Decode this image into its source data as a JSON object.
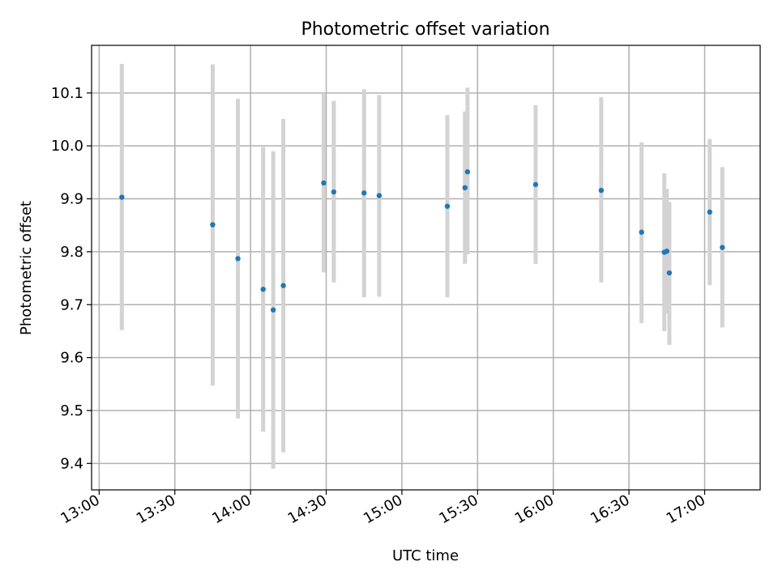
{
  "chart_data": {
    "type": "scatter",
    "title": "Photometric offset variation",
    "xlabel": "UTC time",
    "ylabel": "Photometric offset",
    "xlim": [
      "12:57",
      "17:22"
    ],
    "ylim": [
      9.35,
      10.19
    ],
    "x_ticks": [
      "13:00",
      "13:30",
      "14:00",
      "14:30",
      "15:00",
      "15:30",
      "16:00",
      "16:30",
      "17:00"
    ],
    "y_ticks": [
      9.4,
      9.5,
      9.6,
      9.7,
      9.8,
      9.9,
      10.0,
      10.1
    ],
    "y_tick_labels": [
      "9.4",
      "9.5",
      "9.6",
      "9.7",
      "9.8",
      "9.9",
      "10.0",
      "10.1"
    ],
    "grid": true,
    "colors": {
      "point": "#1f77b4",
      "errorbar": "#d3d3d3"
    },
    "series": [
      {
        "points": [
          {
            "x": "13:09",
            "y": 9.903,
            "ylow": 9.652,
            "yhigh": 10.155
          },
          {
            "x": "13:45",
            "y": 9.851,
            "ylow": 9.547,
            "yhigh": 10.154
          },
          {
            "x": "13:55",
            "y": 9.787,
            "ylow": 9.485,
            "yhigh": 10.089
          },
          {
            "x": "14:05",
            "y": 9.729,
            "ylow": 9.46,
            "yhigh": 9.998
          },
          {
            "x": "14:09",
            "y": 9.69,
            "ylow": 9.39,
            "yhigh": 9.99
          },
          {
            "x": "14:13",
            "y": 9.736,
            "ylow": 9.421,
            "yhigh": 10.051
          },
          {
            "x": "14:29",
            "y": 9.93,
            "ylow": 9.761,
            "yhigh": 10.1
          },
          {
            "x": "14:33",
            "y": 9.913,
            "ylow": 9.742,
            "yhigh": 10.085
          },
          {
            "x": "14:45",
            "y": 9.911,
            "ylow": 9.714,
            "yhigh": 10.107
          },
          {
            "x": "14:51",
            "y": 9.906,
            "ylow": 9.715,
            "yhigh": 10.096
          },
          {
            "x": "15:18",
            "y": 9.886,
            "ylow": 9.714,
            "yhigh": 10.058
          },
          {
            "x": "15:25",
            "y": 9.921,
            "ylow": 9.777,
            "yhigh": 10.065
          },
          {
            "x": "15:26",
            "y": 9.951,
            "ylow": 9.795,
            "yhigh": 10.11
          },
          {
            "x": "15:53",
            "y": 9.927,
            "ylow": 9.777,
            "yhigh": 10.077
          },
          {
            "x": "16:19",
            "y": 9.916,
            "ylow": 9.742,
            "yhigh": 10.092
          },
          {
            "x": "16:35",
            "y": 9.837,
            "ylow": 9.665,
            "yhigh": 10.007
          },
          {
            "x": "16:44",
            "y": 9.799,
            "ylow": 9.65,
            "yhigh": 9.948
          },
          {
            "x": "16:45",
            "y": 9.801,
            "ylow": 9.683,
            "yhigh": 9.919
          },
          {
            "x": "16:46",
            "y": 9.76,
            "ylow": 9.624,
            "yhigh": 9.894
          },
          {
            "x": "17:02",
            "y": 9.875,
            "ylow": 9.737,
            "yhigh": 10.013
          },
          {
            "x": "17:07",
            "y": 9.808,
            "ylow": 9.657,
            "yhigh": 9.96
          }
        ]
      }
    ]
  }
}
